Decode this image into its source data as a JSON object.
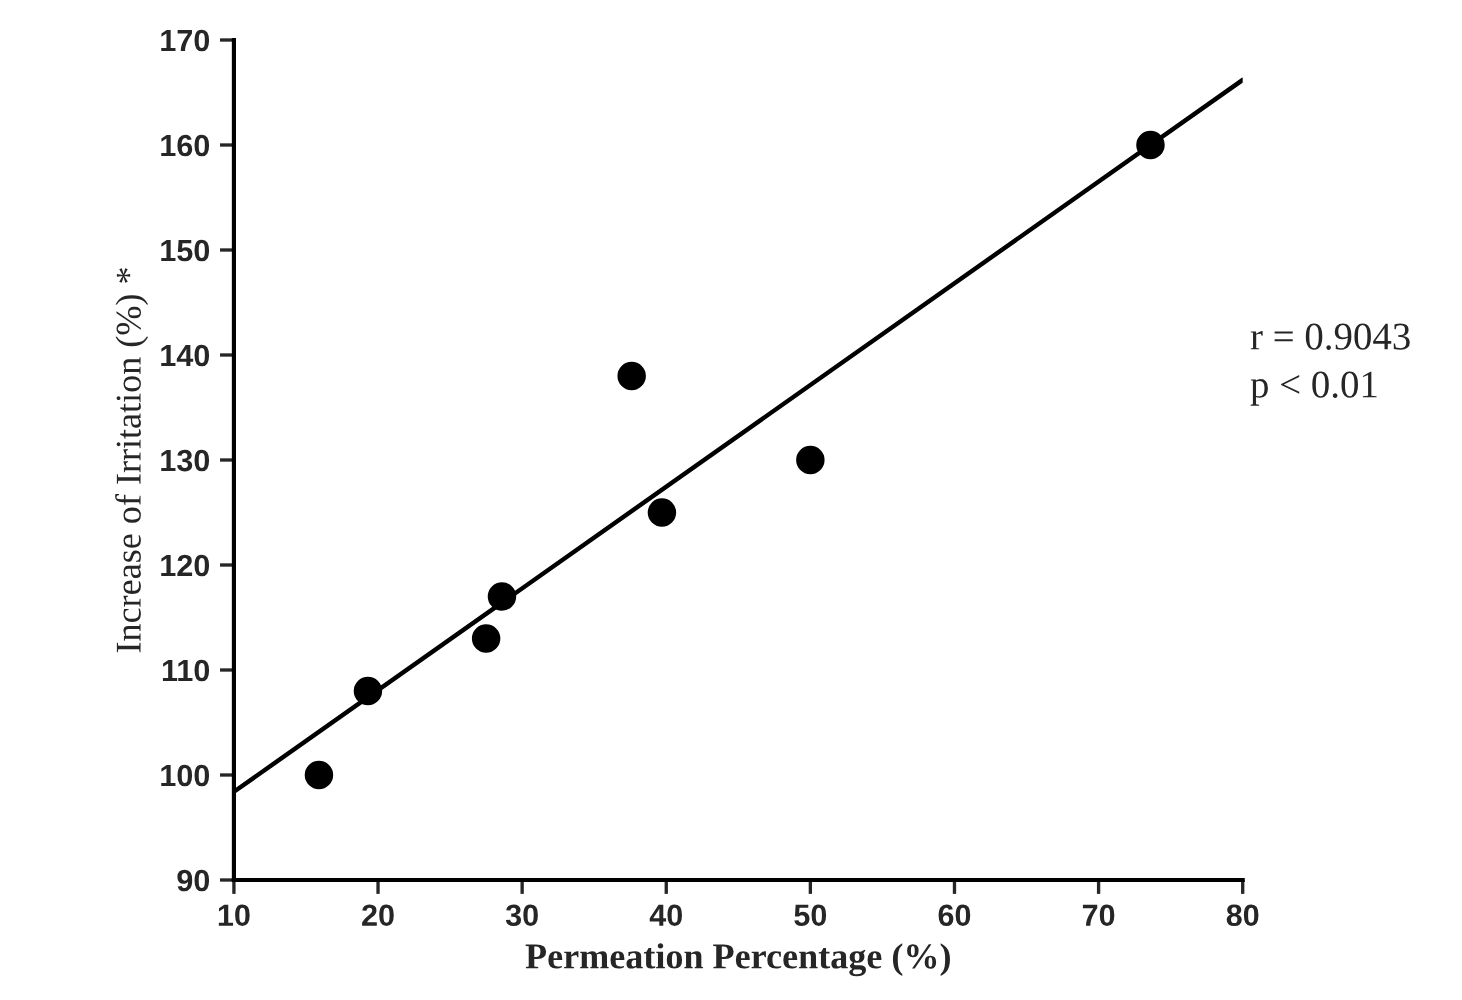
{
  "chart_data": {
    "type": "scatter",
    "xlabel": "Permeation Percentage (%)",
    "ylabel": "Increase of Irritation (%) *",
    "series": [
      {
        "marker": "circle",
        "color": "#000000",
        "x": [
          15.9,
          19.3,
          27.5,
          28.6,
          37.6,
          39.7,
          50.0,
          73.6
        ],
        "values": [
          100,
          108,
          113,
          117,
          138,
          125,
          130,
          160
        ]
      },
      {
        "type": "line",
        "marker": "none",
        "color": "#000000",
        "x": [
          10,
          80
        ],
        "values": [
          98.4,
          166.2
        ]
      }
    ],
    "xlim": [
      10,
      80
    ],
    "xticks": [
      10,
      20,
      30,
      40,
      50,
      60,
      70,
      80
    ],
    "ylim": [
      90,
      170
    ],
    "yticks": [
      90,
      100,
      110,
      120,
      130,
      140,
      150,
      160,
      170
    ],
    "annotations": [
      "r = 0.9043",
      "p < 0.01"
    ],
    "grid": false
  }
}
